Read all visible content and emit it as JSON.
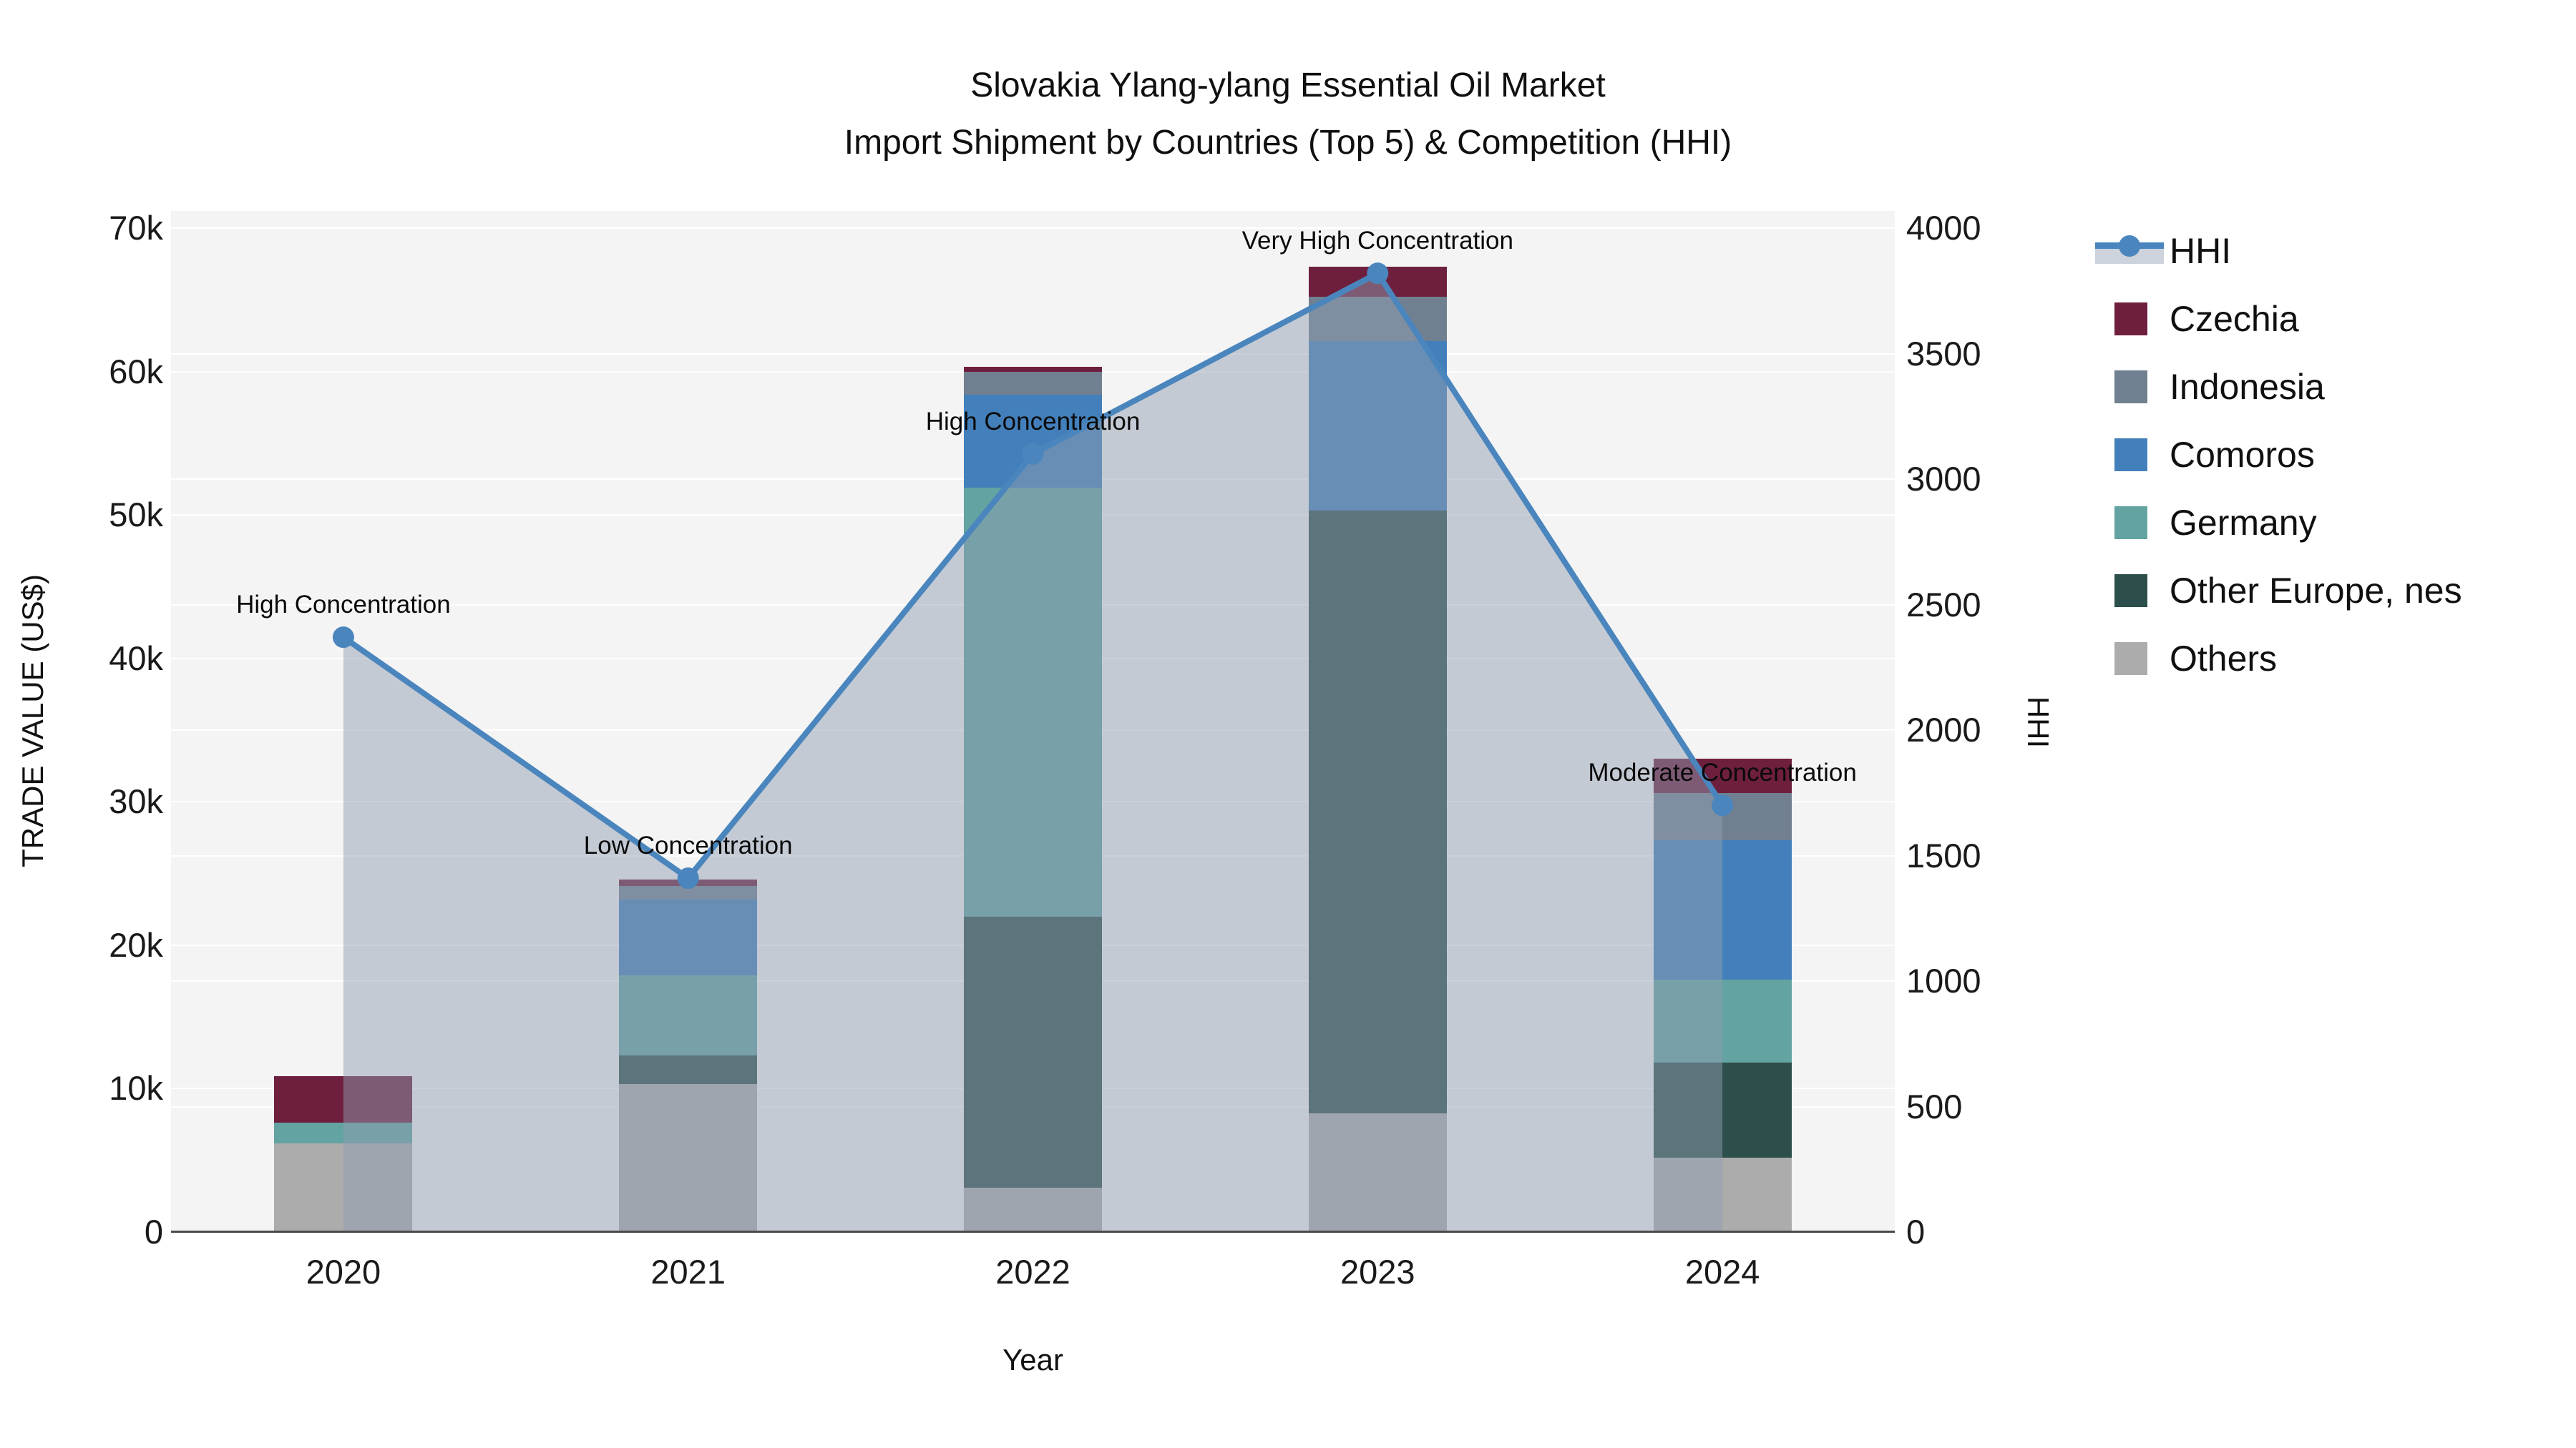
{
  "title": {
    "line1": "Slovakia Ylang-ylang Essential Oil Market",
    "line2": "Import Shipment by Countries (Top 5) & Competition (HHI)"
  },
  "axes": {
    "y_left": {
      "title": "TRADE VALUE (US$)",
      "tick_labels": [
        "0",
        "10k",
        "20k",
        "30k",
        "40k",
        "50k",
        "60k",
        "70k"
      ],
      "min": 0,
      "max": 70000,
      "tick_step": 10000
    },
    "y_right": {
      "title": "HHI",
      "tick_labels": [
        "0",
        "500",
        "1000",
        "1500",
        "2000",
        "2500",
        "3000",
        "3500",
        "4000"
      ],
      "min": 0,
      "max": 4000,
      "tick_step": 500
    },
    "x": {
      "title": "Year"
    }
  },
  "legend": {
    "items": [
      {
        "key": "hhi",
        "label": "HHI",
        "type": "line",
        "color": "#4a86bd"
      },
      {
        "key": "czechia",
        "label": "Czechia",
        "type": "swatch",
        "color": "#6e1f3e"
      },
      {
        "key": "indonesia",
        "label": "Indonesia",
        "type": "swatch",
        "color": "#708090"
      },
      {
        "key": "comoros",
        "label": "Comoros",
        "type": "swatch",
        "color": "#4380bb"
      },
      {
        "key": "germany",
        "label": "Germany",
        "type": "swatch",
        "color": "#63a3a1"
      },
      {
        "key": "other_europe",
        "label": "Other Europe, nes",
        "type": "swatch",
        "color": "#2d4f4b"
      },
      {
        "key": "others",
        "label": "Others",
        "type": "swatch",
        "color": "#acacac"
      }
    ]
  },
  "annotations": [
    {
      "year": "2020",
      "text": "High Concentration"
    },
    {
      "year": "2021",
      "text": "Low Concentration"
    },
    {
      "year": "2022",
      "text": "High Concentration"
    },
    {
      "year": "2023",
      "text": "Very High Concentration"
    },
    {
      "year": "2024",
      "text": "Moderate Concentration"
    }
  ],
  "chart_data": {
    "type": "bar+line",
    "title": "Slovakia Ylang-ylang Essential Oil Market — Import Shipment by Countries (Top 5) & Competition (HHI)",
    "categories": [
      "2020",
      "2021",
      "2022",
      "2023",
      "2024"
    ],
    "xlabel": "Year",
    "ylabel_left": "TRADE VALUE (US$)",
    "ylabel_right": "HHI",
    "ylim_left": [
      0,
      70000
    ],
    "ylim_right": [
      0,
      4000
    ],
    "grid": true,
    "legend_position": "right",
    "stack_order_bottom_to_top": [
      "others",
      "other_europe",
      "germany",
      "comoros",
      "indonesia",
      "czechia"
    ],
    "series": [
      {
        "key": "others",
        "name": "Others",
        "color": "#acacac",
        "values": [
          6200,
          10300,
          3100,
          8300,
          5200
        ]
      },
      {
        "key": "other_europe",
        "name": "Other Europe, nes",
        "color": "#2d4f4b",
        "values": [
          0,
          2000,
          18900,
          42000,
          6600
        ]
      },
      {
        "key": "germany",
        "name": "Germany",
        "color": "#63a3a1",
        "values": [
          1450,
          5600,
          29900,
          0,
          5800
        ]
      },
      {
        "key": "comoros",
        "name": "Comoros",
        "color": "#4380bb",
        "values": [
          0,
          5300,
          6500,
          11800,
          9700
        ]
      },
      {
        "key": "indonesia",
        "name": "Indonesia",
        "color": "#708090",
        "values": [
          0,
          950,
          1600,
          3100,
          3300
        ]
      },
      {
        "key": "czechia",
        "name": "Czechia",
        "color": "#6e1f3e",
        "values": [
          3200,
          450,
          350,
          2100,
          2400
        ]
      }
    ],
    "bar_totals": [
      10850,
      24600,
      60350,
      67300,
      33000
    ],
    "line_series": {
      "key": "hhi",
      "name": "HHI",
      "color": "#4a86bd",
      "fill_color": "rgba(144,157,178,0.48)",
      "values": [
        2370,
        1410,
        3100,
        3820,
        1700
      ]
    }
  }
}
